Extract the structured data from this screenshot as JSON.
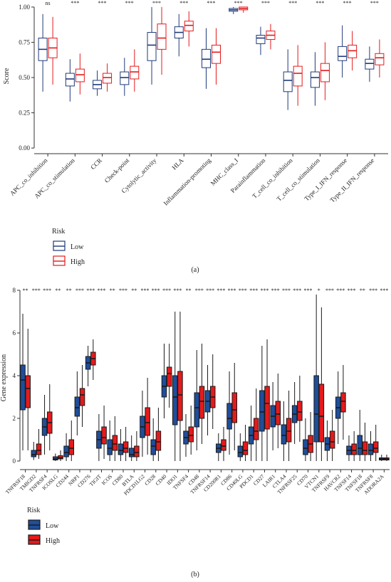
{
  "chart_data": [
    {
      "type": "box",
      "caption": "(a)",
      "ylabel": "Score",
      "legend_title": "Risk",
      "fill": false,
      "ylim": [
        -0.04,
        1.06
      ],
      "yticks": [
        {
          "value": 0,
          "label": "0.00"
        },
        {
          "value": 0.25,
          "label": "0.25"
        },
        {
          "value": 0.5,
          "label": "0.50"
        },
        {
          "value": 0.75,
          "label": "0.75"
        },
        {
          "value": 1,
          "label": "1.00"
        }
      ],
      "categories": [
        "APC_co_inhibition",
        "APC_co_stimulation",
        "CCR",
        "Check-point",
        "Cytolytic_activity",
        "HLA",
        "Inflammation-promoting",
        "MHC_class_I",
        "Parainflammation",
        "T_cell_co_inhibition",
        "T_cell_co_stimulation",
        "Type_I_IFN_response",
        "Type_II_IFN_response"
      ],
      "significance": [
        "ns",
        "***",
        "***",
        "***",
        "***",
        "***",
        "***",
        "***",
        "***",
        "***",
        "***",
        "***",
        "***"
      ],
      "series": [
        {
          "name": "Low",
          "color": "#1f3a7a",
          "boxes": [
            [
              0.4,
              0.62,
              0.7,
              0.78,
              0.95
            ],
            [
              0.33,
              0.44,
              0.49,
              0.53,
              0.63
            ],
            [
              0.37,
              0.42,
              0.45,
              0.48,
              0.55
            ],
            [
              0.37,
              0.45,
              0.5,
              0.54,
              0.64
            ],
            [
              0.45,
              0.62,
              0.73,
              0.82,
              1.0
            ],
            [
              0.65,
              0.78,
              0.82,
              0.86,
              0.95
            ],
            [
              0.42,
              0.57,
              0.63,
              0.7,
              0.85
            ],
            [
              0.95,
              0.97,
              0.98,
              0.99,
              1.0
            ],
            [
              0.66,
              0.74,
              0.78,
              0.8,
              0.86
            ],
            [
              0.27,
              0.4,
              0.48,
              0.54,
              0.7
            ],
            [
              0.3,
              0.43,
              0.5,
              0.54,
              0.68
            ],
            [
              0.5,
              0.62,
              0.65,
              0.72,
              0.87
            ],
            [
              0.47,
              0.56,
              0.6,
              0.63,
              0.72
            ]
          ]
        },
        {
          "name": "High",
          "color": "#e41a1c",
          "boxes": [
            [
              0.45,
              0.64,
              0.71,
              0.78,
              0.93
            ],
            [
              0.38,
              0.47,
              0.52,
              0.56,
              0.67
            ],
            [
              0.4,
              0.46,
              0.5,
              0.53,
              0.6
            ],
            [
              0.4,
              0.49,
              0.54,
              0.58,
              0.7
            ],
            [
              0.52,
              0.7,
              0.78,
              0.88,
              1.0
            ],
            [
              0.72,
              0.83,
              0.87,
              0.9,
              0.97
            ],
            [
              0.45,
              0.6,
              0.68,
              0.73,
              0.85
            ],
            [
              0.96,
              0.98,
              0.99,
              1.0,
              1.0
            ],
            [
              0.7,
              0.77,
              0.8,
              0.83,
              0.88
            ],
            [
              0.3,
              0.44,
              0.53,
              0.58,
              0.73
            ],
            [
              0.34,
              0.47,
              0.55,
              0.6,
              0.75
            ],
            [
              0.55,
              0.64,
              0.69,
              0.73,
              0.83
            ],
            [
              0.5,
              0.59,
              0.64,
              0.67,
              0.77
            ]
          ]
        }
      ]
    },
    {
      "type": "box",
      "caption": "(b)",
      "ylabel": "Gene expression",
      "legend_title": "Risk",
      "fill": true,
      "ylim": [
        -0.4,
        8.2
      ],
      "yticks": [
        0,
        2,
        4,
        6,
        8
      ],
      "categories": [
        "TNFRSF18",
        "TMIGD2",
        "TNFRSF4",
        "ICOSLG",
        "CD244",
        "NRP1",
        "CD276",
        "TIGIT",
        "ICOS",
        "CD80",
        "BTLA",
        "PDCD1LG2",
        "CD28",
        "CD40",
        "IDO1",
        "TNFSF4",
        "CD48",
        "TNFRSF14",
        "CD200R1",
        "CD86",
        "CD40LG",
        "PDCD1",
        "CD27",
        "LAIR1",
        "CTLA4",
        "TNFRSF25",
        "CD70",
        "VTCN1",
        "TNFRSF9",
        "HAVCR2",
        "TNFSF14",
        "TNFSF18",
        "TNFRSF8",
        "ADORA2A"
      ],
      "significance": [
        "**",
        "***",
        "***",
        "**",
        "**",
        "***",
        "***",
        "***",
        "**",
        "***",
        "**",
        "***",
        "***",
        "***",
        "***",
        "**",
        "***",
        "***",
        "***",
        "***",
        "***",
        "***",
        "***",
        "***",
        "***",
        "***",
        "***",
        "*",
        "***",
        "***",
        "***",
        "**",
        "***",
        "***"
      ],
      "series": [
        {
          "name": "Low",
          "color": "#1f4e9a",
          "boxes": [
            [
              0.5,
              2.4,
              3.8,
              4.5,
              6.9
            ],
            [
              0.05,
              0.2,
              0.3,
              0.5,
              0.9
            ],
            [
              0.3,
              1.2,
              1.6,
              2.0,
              3.1
            ],
            [
              0,
              0.05,
              0.1,
              0.2,
              0.35
            ],
            [
              0,
              0.2,
              0.4,
              0.7,
              1.3
            ],
            [
              1.2,
              2.1,
              2.5,
              3.0,
              4.2
            ],
            [
              3.5,
              4.3,
              4.6,
              4.9,
              5.4
            ],
            [
              0,
              0.6,
              1.0,
              1.4,
              2.2
            ],
            [
              0,
              0.3,
              0.6,
              1.0,
              1.9
            ],
            [
              0,
              0.3,
              0.5,
              0.8,
              1.5
            ],
            [
              0,
              0.2,
              0.3,
              0.6,
              1.2
            ],
            [
              0.2,
              1.1,
              1.6,
              2.1,
              3.3
            ],
            [
              0,
              0.3,
              0.7,
              1.0,
              2.0
            ],
            [
              2.0,
              3.0,
              3.5,
              4.0,
              5.5
            ],
            [
              0,
              1.7,
              3.0,
              4.0,
              7.0
            ],
            [
              0.2,
              0.8,
              1.1,
              1.4,
              2.2
            ],
            [
              0.5,
              1.6,
              2.5,
              3.2,
              5.2
            ],
            [
              1.2,
              2.3,
              2.8,
              3.3,
              4.5
            ],
            [
              0,
              0.4,
              0.6,
              0.8,
              1.3
            ],
            [
              0.3,
              1.5,
              2.0,
              2.7,
              4.2
            ],
            [
              0,
              0.2,
              0.4,
              0.7,
              1.3
            ],
            [
              0,
              0.8,
              1.2,
              1.6,
              2.6
            ],
            [
              0,
              1.4,
              2.3,
              3.3,
              5.4
            ],
            [
              0.5,
              1.6,
              2.1,
              2.6,
              3.7
            ],
            [
              0,
              0.8,
              1.2,
              1.7,
              2.8
            ],
            [
              0.8,
              1.8,
              2.2,
              2.6,
              3.7
            ],
            [
              0,
              0.3,
              0.6,
              1.0,
              2.0
            ],
            [
              0,
              0.9,
              2.2,
              4.0,
              7.8
            ],
            [
              0,
              0.5,
              0.8,
              1.1,
              1.9
            ],
            [
              0.8,
              2.0,
              2.5,
              3.0,
              4.2
            ],
            [
              0,
              0.3,
              0.5,
              0.7,
              1.2
            ],
            [
              0,
              0.3,
              0.6,
              1.2,
              2.4
            ],
            [
              0,
              0.3,
              0.5,
              0.8,
              1.4
            ],
            [
              0,
              0.05,
              0.1,
              0.15,
              0.3
            ]
          ]
        },
        {
          "name": "High",
          "color": "#e41a1c",
          "boxes": [
            [
              0.5,
              2.5,
              3.4,
              4.0,
              6.2
            ],
            [
              0.1,
              0.3,
              0.5,
              0.8,
              1.5
            ],
            [
              0.5,
              1.3,
              1.8,
              2.3,
              3.6
            ],
            [
              0,
              0.1,
              0.15,
              0.25,
              0.5
            ],
            [
              0,
              0.3,
              0.6,
              1.0,
              1.9
            ],
            [
              1.6,
              2.6,
              3.1,
              3.4,
              4.5
            ],
            [
              3.8,
              4.5,
              4.8,
              5.1,
              5.7
            ],
            [
              0.1,
              0.8,
              1.1,
              1.6,
              2.6
            ],
            [
              0,
              0.5,
              0.8,
              1.2,
              2.1
            ],
            [
              0,
              0.4,
              0.6,
              0.9,
              1.6
            ],
            [
              0,
              0.2,
              0.4,
              0.7,
              1.4
            ],
            [
              0.3,
              1.2,
              1.8,
              2.5,
              3.9
            ],
            [
              0,
              0.5,
              0.9,
              1.4,
              2.5
            ],
            [
              2.5,
              3.5,
              4.1,
              4.4,
              5.5
            ],
            [
              0,
              1.9,
              3.1,
              4.2,
              7.0
            ],
            [
              0.3,
              0.9,
              1.2,
              1.6,
              2.6
            ],
            [
              0.8,
              2.0,
              2.8,
              3.5,
              5.5
            ],
            [
              1.5,
              2.5,
              3.0,
              3.5,
              5.0
            ],
            [
              0,
              0.5,
              0.7,
              1.0,
              1.6
            ],
            [
              0.5,
              1.8,
              2.4,
              3.2,
              4.6
            ],
            [
              0,
              0.3,
              0.5,
              0.9,
              1.7
            ],
            [
              0,
              1.0,
              1.4,
              2.0,
              3.4
            ],
            [
              0,
              1.5,
              2.7,
              3.5,
              5.7
            ],
            [
              0.6,
              1.7,
              2.2,
              2.8,
              4.1
            ],
            [
              0,
              0.9,
              1.4,
              2.0,
              3.3
            ],
            [
              0.9,
              1.9,
              2.3,
              2.8,
              4.0
            ],
            [
              0,
              0.4,
              0.8,
              1.2,
              2.3
            ],
            [
              0,
              0.9,
              2.1,
              3.6,
              7.2
            ],
            [
              0,
              0.6,
              0.9,
              1.4,
              2.4
            ],
            [
              1.0,
              2.3,
              2.8,
              3.2,
              4.5
            ],
            [
              0,
              0.3,
              0.5,
              0.8,
              1.4
            ],
            [
              0,
              0.3,
              0.5,
              0.9,
              1.8
            ],
            [
              0,
              0.4,
              0.6,
              0.9,
              1.7
            ],
            [
              0,
              0.05,
              0.1,
              0.15,
              0.3
            ]
          ]
        }
      ]
    }
  ]
}
